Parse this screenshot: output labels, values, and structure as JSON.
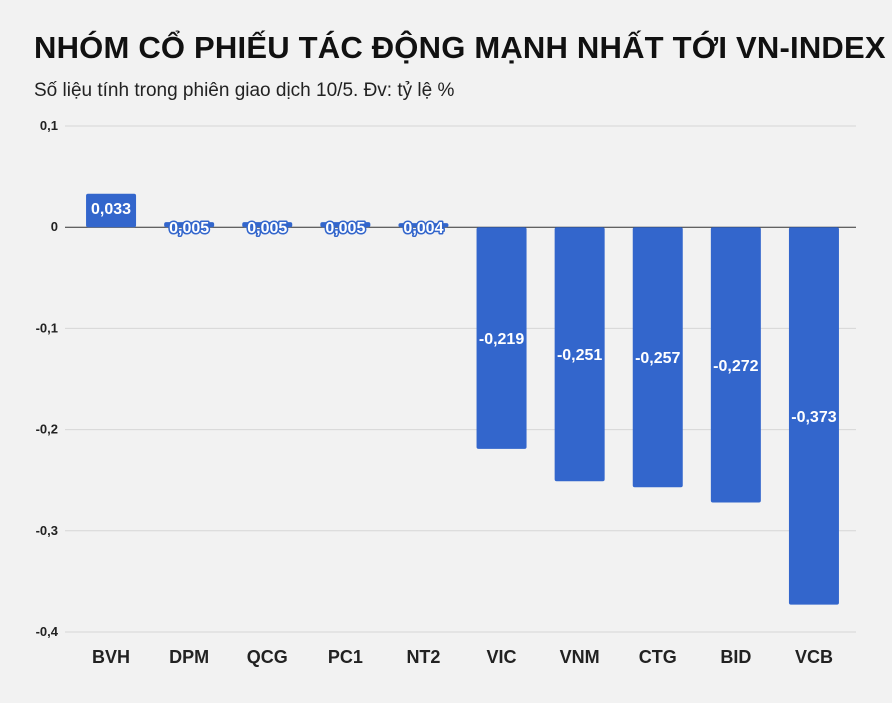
{
  "chart_data": {
    "type": "bar",
    "title": "NHÓM CỔ PHIẾU TÁC ĐỘNG MẠNH NHẤT TỚI VN-INDEX",
    "subtitle": "Số liệu tính trong phiên giao dịch 10/5. Đv: tỷ lệ %",
    "categories": [
      "BVH",
      "DPM",
      "QCG",
      "PC1",
      "NT2",
      "VIC",
      "VNM",
      "CTG",
      "BID",
      "VCB"
    ],
    "values": [
      0.033,
      0.005,
      0.005,
      0.005,
      0.004,
      -0.219,
      -0.251,
      -0.257,
      -0.272,
      -0.373
    ],
    "labels": [
      "0,033",
      "0,005",
      "0,005",
      "0,005",
      "0,004",
      "-0,219",
      "-0,251",
      "-0,257",
      "-0,272",
      "-0,373"
    ],
    "yticks": [
      0.1,
      0,
      -0.1,
      -0.2,
      -0.3,
      -0.4
    ],
    "ytick_labels": [
      "0,1",
      "0",
      "-0,1",
      "-0,2",
      "-0,3",
      "-0,4"
    ],
    "ylim": [
      -0.4,
      0.1
    ],
    "grid": true,
    "xlabel": "",
    "ylabel": "",
    "bar_color": "#3366cc"
  }
}
